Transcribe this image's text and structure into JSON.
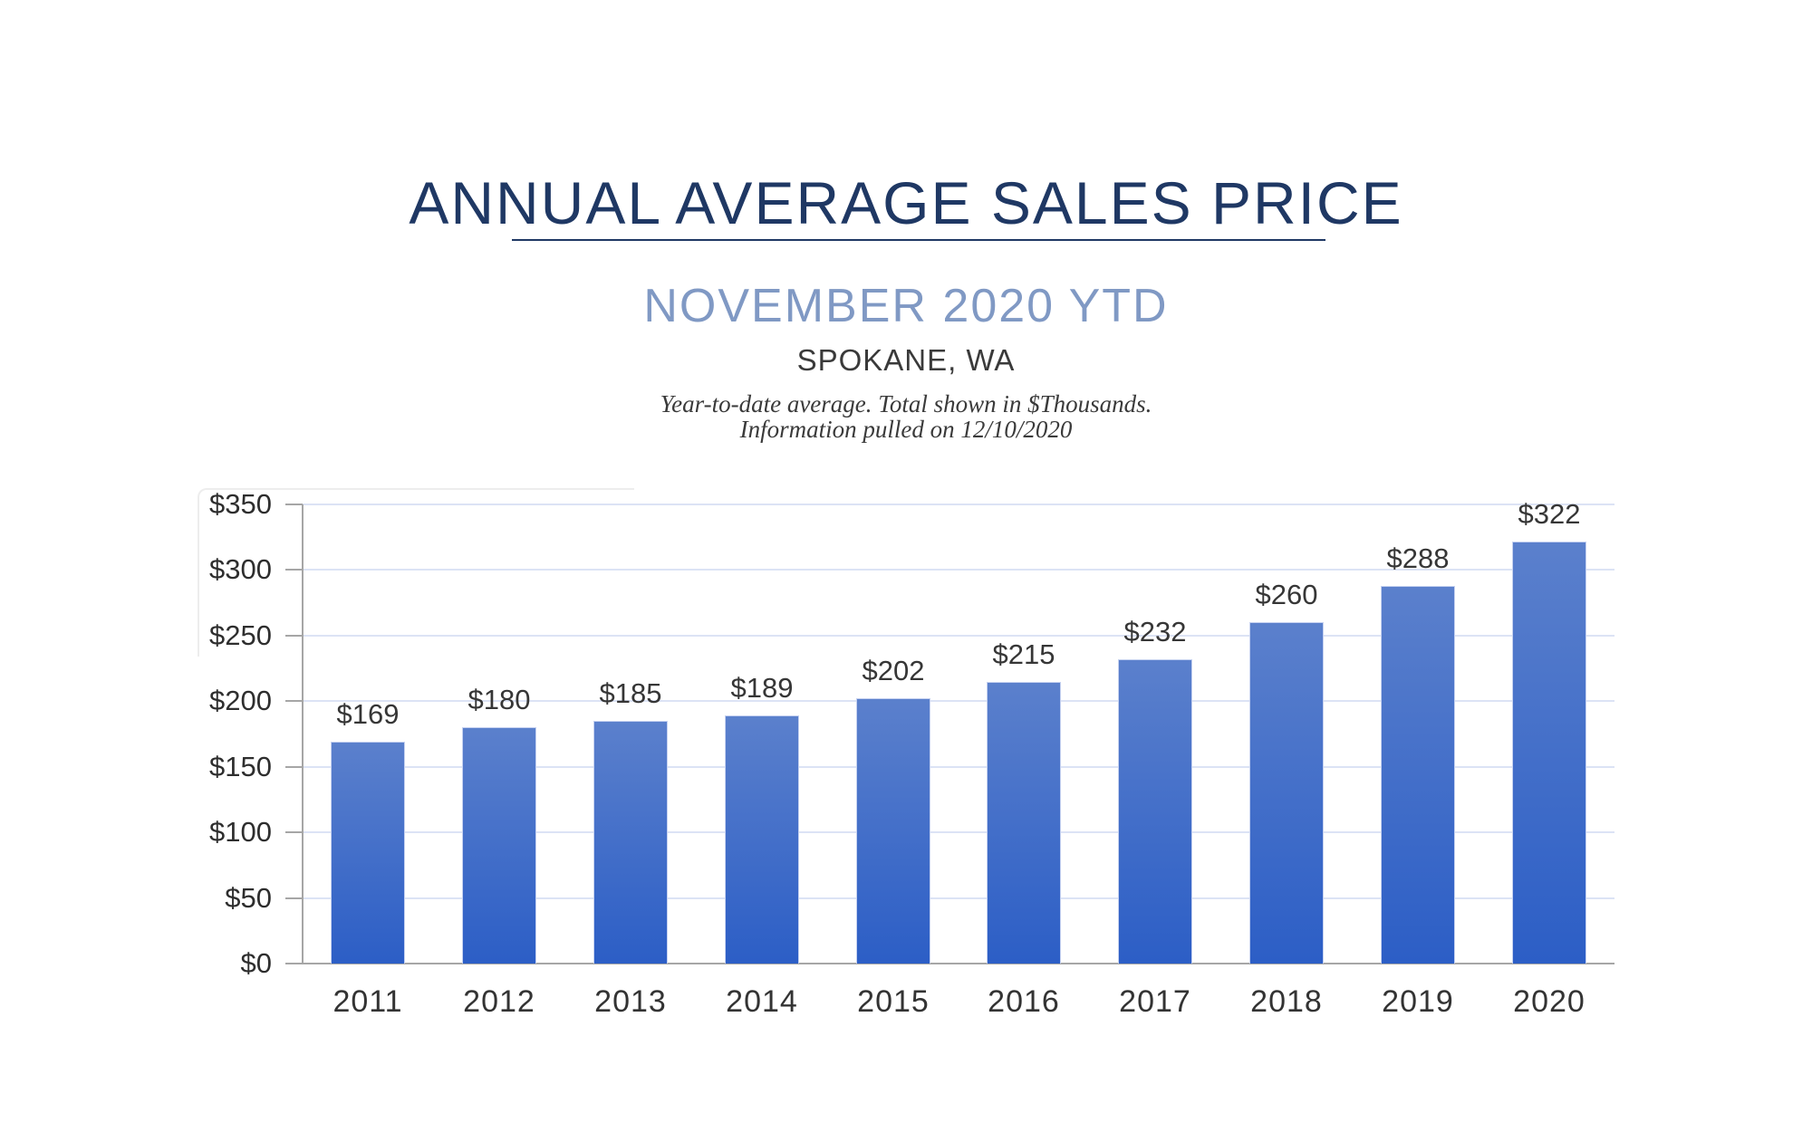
{
  "header": {
    "title": "ANNUAL AVERAGE SALES PRICE",
    "subtitle": "NOVEMBER 2020 YTD",
    "location": "SPOKANE, WA",
    "note_line1": "Year-to-date average.  Total shown in $Thousands.",
    "note_line2": "Information pulled on 12/10/2020",
    "title_color": "#1f3864",
    "subtitle_color": "#8099c4",
    "text_color": "#3a3a3a"
  },
  "chart_data": {
    "type": "bar",
    "title": "ANNUAL AVERAGE SALES PRICE",
    "subtitle": "NOVEMBER 2020 YTD",
    "categories": [
      "2011",
      "2012",
      "2013",
      "2014",
      "2015",
      "2016",
      "2017",
      "2018",
      "2019",
      "2020"
    ],
    "values": [
      169,
      180,
      185,
      189,
      202,
      215,
      232,
      260,
      288,
      322
    ],
    "data_labels": [
      "$169",
      "$180",
      "$185",
      "$189",
      "$202",
      "$215",
      "$232",
      "$260",
      "$288",
      "$322"
    ],
    "y_ticks": [
      0,
      50,
      100,
      150,
      200,
      250,
      300,
      350
    ],
    "y_tick_labels": [
      "$0",
      "$50",
      "$100",
      "$150",
      "$200",
      "$250",
      "$300",
      "$350"
    ],
    "ylim": [
      0,
      350
    ],
    "xlabel": "",
    "ylabel": "",
    "grid": true,
    "legend": "none",
    "bar_color_top": "#5b80cc",
    "bar_color_bottom": "#2c5ec6",
    "bar_border_color": "#c5d1f0",
    "gridline_color": "#dce3f5",
    "axis_color": "#a6a6a6",
    "label_color": "#363636"
  }
}
